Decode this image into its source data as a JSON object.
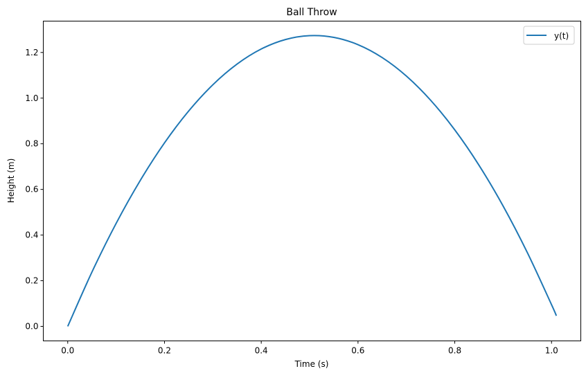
{
  "chart_data": {
    "type": "line",
    "title": "Ball Throw",
    "xlabel": "Time (s)",
    "ylabel": "Height (m)",
    "xlim": [
      -0.0505,
      1.0605
    ],
    "ylim": [
      -0.0637,
      1.3374
    ],
    "xticks": [
      "0.0",
      "0.2",
      "0.4",
      "0.6",
      "0.8",
      "1.0"
    ],
    "yticks": [
      "0.0",
      "0.2",
      "0.4",
      "0.6",
      "0.8",
      "1.0",
      "1.2"
    ],
    "grid": false,
    "legend_position": "top-right",
    "series": [
      {
        "name": "y(t)",
        "color": "#1f77b4",
        "x": [
          0,
          0.05,
          0.1,
          0.15,
          0.2,
          0.25,
          0.3,
          0.35,
          0.4,
          0.45,
          0.5,
          0.55,
          0.6,
          0.65,
          0.7,
          0.75,
          0.8,
          0.85,
          0.9,
          0.95,
          1.0,
          1.01
        ],
        "y": [
          0,
          0.2377,
          0.451,
          0.6396,
          0.8038,
          0.9434,
          1.0586,
          1.1491,
          1.2152,
          1.2567,
          1.2738,
          1.2662,
          1.2342,
          1.1776,
          1.0966,
          0.9909,
          0.8608,
          0.7061,
          0.527,
          0.3232,
          0.095,
          0.0464
        ]
      }
    ]
  }
}
